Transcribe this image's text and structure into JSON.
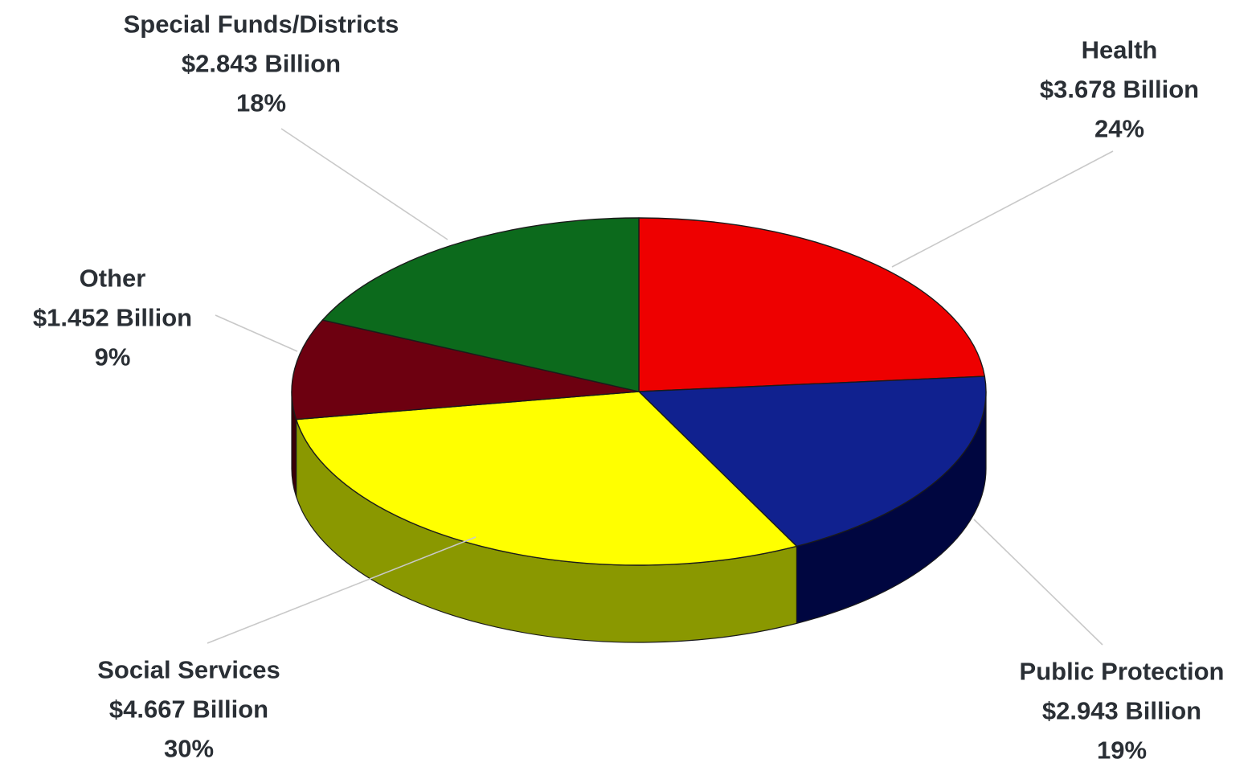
{
  "chart_data": {
    "type": "pie",
    "style": "3d",
    "unit": "Billion",
    "slices": [
      {
        "name": "Health",
        "value": 3.678,
        "value_label": "$3.678 Billion",
        "percent": 24,
        "percent_label": "24%",
        "color": "#ee0000",
        "side_color": "#8a0000"
      },
      {
        "name": "Public Protection",
        "value": 2.943,
        "value_label": "$2.943 Billion",
        "percent": 19,
        "percent_label": "19%",
        "color": "#10218f",
        "side_color": "#000640"
      },
      {
        "name": "Social Services",
        "value": 4.667,
        "value_label": "$4.667 Billion",
        "percent": 30,
        "percent_label": "30%",
        "color": "#ffff00",
        "side_color": "#8a9800"
      },
      {
        "name": "Other",
        "value": 1.452,
        "value_label": "$1.452 Billion",
        "percent": 9,
        "percent_label": "9%",
        "color": "#6d0010",
        "side_color": "#3a0008"
      },
      {
        "name": "Special Funds/Districts",
        "value": 2.843,
        "value_label": "$2.843 Billion",
        "percent": 18,
        "percent_label": "18%",
        "color": "#0c6a1c",
        "side_color": "#053a0c"
      }
    ]
  }
}
